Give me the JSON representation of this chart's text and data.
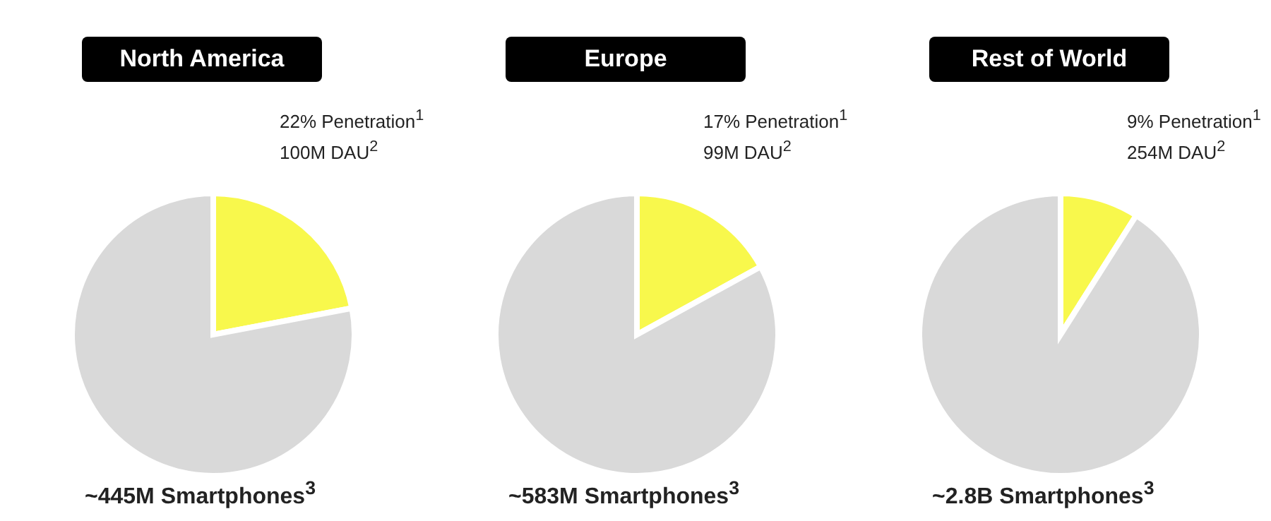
{
  "chart_data": [
    {
      "type": "pie",
      "title": "North America",
      "categories": [
        null,
        null
      ],
      "values": [
        22,
        78
      ],
      "colors": [
        "#f8f84c",
        "#d9d9d9"
      ],
      "annotations": [
        "22% Penetration$^{1}$",
        "100M DAU$^{2}$",
        "~445M Smartphones$^{3}$"
      ]
    },
    {
      "type": "pie",
      "title": "Europe",
      "categories": [
        null,
        null
      ],
      "values": [
        17,
        83
      ],
      "colors": [
        "#f8f84c",
        "#d9d9d9"
      ],
      "annotations": [
        "17% Penetration$^{1}$",
        "99M DAU$^{2}$",
        "~583M Smartphones$^{3}$"
      ]
    },
    {
      "type": "pie",
      "title": "Rest of World",
      "categories": [
        null,
        null
      ],
      "values": [
        9,
        91
      ],
      "colors": [
        "#f8f84c",
        "#d9d9d9"
      ],
      "annotations": [
        "9% Penetration$^{1}$",
        "254M DAU$^{2}$",
        "~2.8B Smartphones$^{3}$"
      ]
    }
  ]
}
